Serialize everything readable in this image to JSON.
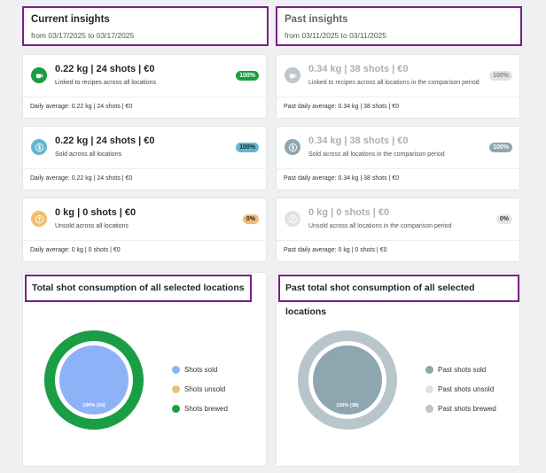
{
  "current": {
    "title": "Current insights",
    "range": "from 03/17/2025 to 03/17/2025",
    "cards": [
      {
        "icon": "coffee-cup-icon",
        "main": "0.22 kg | 24 shots | €0",
        "sub": "Linked to recipes across all locations",
        "badge": "100%",
        "avg": "Daily average: 0.22 kg | 24 shots | €0",
        "color": "#1a9e45"
      },
      {
        "icon": "dollar-icon",
        "main": "0.22 kg | 24 shots | €0",
        "sub": "Sold across all locations",
        "badge": "100%",
        "avg": "Daily average: 0.22 kg | 24 shots | €0",
        "color": "#63b6cf"
      },
      {
        "icon": "question-icon",
        "main": "0 kg | 0 shots | €0",
        "sub": "Unsold across all locations",
        "badge": "0%",
        "avg": "Daily average: 0 kg | 0 shots | €0",
        "color": "#f0be6e"
      }
    ],
    "pie": {
      "title": "Total shot consumption of all selected locations",
      "center_label": "100% (24)",
      "legend": [
        {
          "label": "Shots sold",
          "color": "#8eb2f7"
        },
        {
          "label": "Shots unsold",
          "color": "#e8c47d"
        },
        {
          "label": "Shots brewed",
          "color": "#1a9e45"
        }
      ]
    }
  },
  "past": {
    "title": "Past insights",
    "range": "from 03/11/2025 to 03/11/2025",
    "cards": [
      {
        "icon": "coffee-cup-icon",
        "main": "0.34 kg | 38 shots | €0",
        "sub": "Linked to recipes across all locations in the comparison period",
        "badge": "100%",
        "avg": "Past daily average: 0.34 kg | 38 shots | €0",
        "color": "#bfc7cc"
      },
      {
        "icon": "dollar-icon",
        "main": "0.34 kg | 38 shots | €0",
        "sub": "Sold across all locations in the comparison period",
        "badge": "100%",
        "avg": "Past daily average: 0.34 kg | 38 shots | €0",
        "color": "#8ea6b0"
      },
      {
        "icon": "question-icon",
        "main": "0 kg | 0 shots | €0",
        "sub": "Unsold across all locations in the comparison period",
        "badge": "0%",
        "avg": "Past daily average: 0 kg | 0 shots | €0",
        "color": "#e0e3e5"
      }
    ],
    "pie": {
      "title": "Past total shot consumption of all selected locations",
      "center_label": "100% (38)",
      "legend": [
        {
          "label": "Past shots sold",
          "color": "#8ea6b0"
        },
        {
          "label": "Past shots unsold",
          "color": "#dde1e3"
        },
        {
          "label": "Past shots brewed",
          "color": "#b8c5cb"
        }
      ]
    }
  },
  "chart_data": [
    {
      "type": "pie",
      "title": "Total shot consumption of all selected locations",
      "series": [
        {
          "name": "Shots sold",
          "values": [
            24
          ]
        },
        {
          "name": "Shots unsold",
          "values": [
            0
          ]
        },
        {
          "name": "Shots brewed",
          "values": [
            24
          ]
        }
      ],
      "annotations": [
        "100% (24)"
      ]
    },
    {
      "type": "pie",
      "title": "Past total shot consumption of all selected locations",
      "series": [
        {
          "name": "Past shots sold",
          "values": [
            38
          ]
        },
        {
          "name": "Past shots unsold",
          "values": [
            0
          ]
        },
        {
          "name": "Past shots brewed",
          "values": [
            38
          ]
        }
      ],
      "annotations": [
        "100% (38)"
      ]
    }
  ]
}
